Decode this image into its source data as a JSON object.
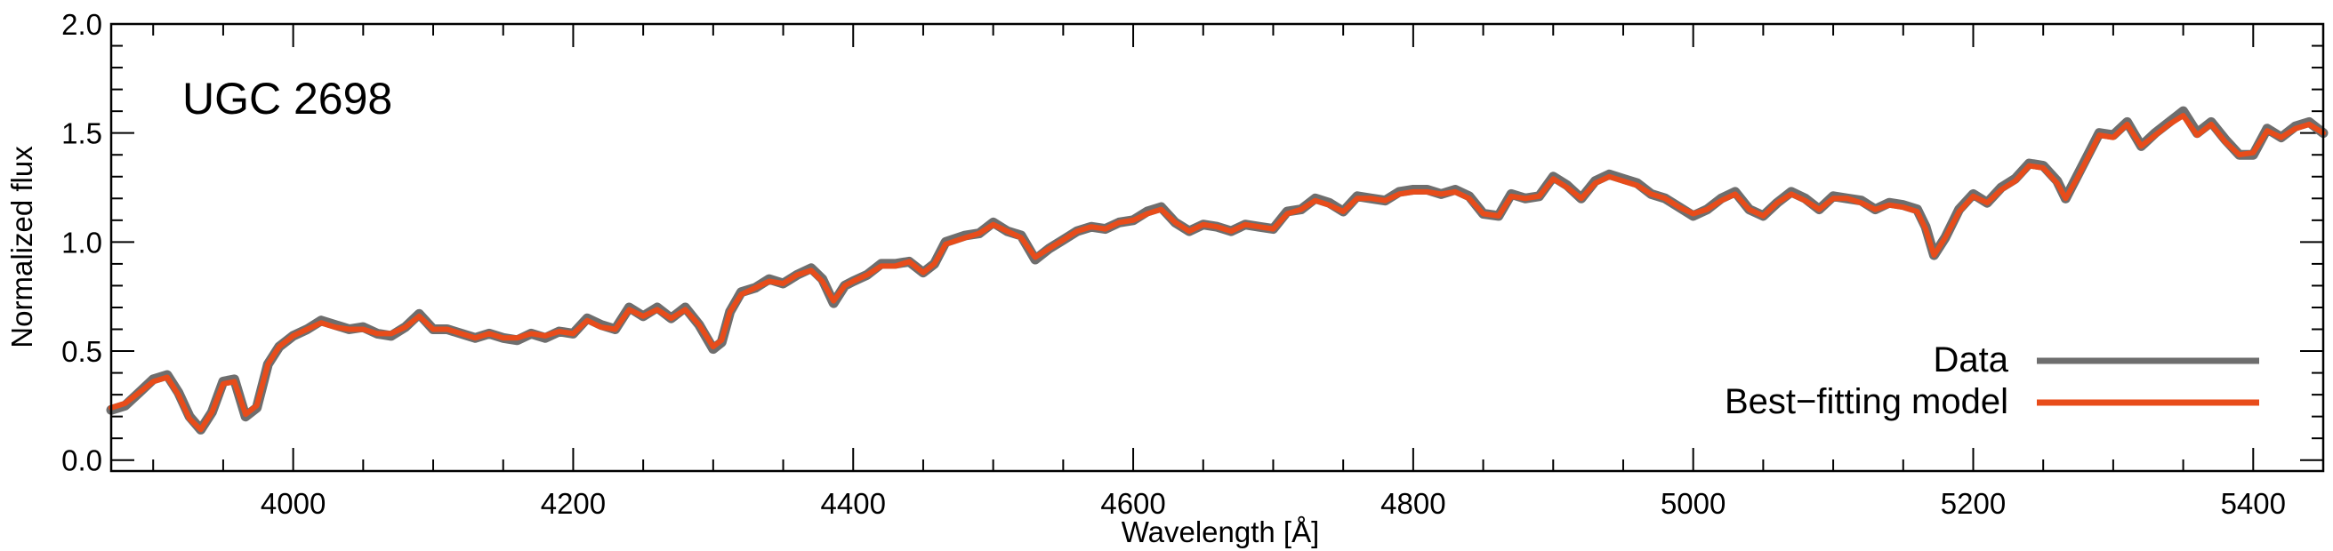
{
  "chart_data": {
    "type": "line",
    "title": "",
    "annotation": "UGC 2698",
    "xlabel": "Wavelength [Å]",
    "ylabel": "Normalized flux",
    "xlim": [
      3870,
      5450
    ],
    "ylim": [
      -0.05,
      2.0
    ],
    "xticks": [
      4000,
      4200,
      4400,
      4600,
      4800,
      5000,
      5200,
      5400
    ],
    "xtick_labels": [
      "4000",
      "4200",
      "4400",
      "4600",
      "4800",
      "5000",
      "5200",
      "5400"
    ],
    "yticks": [
      0.0,
      0.5,
      1.0,
      1.5,
      2.0
    ],
    "ytick_labels": [
      "0.0",
      "0.5",
      "1.0",
      "1.5",
      "2.0"
    ],
    "grid": false,
    "legend_position": "bottom-right",
    "series": [
      {
        "name": "Data",
        "color": "#6e6e6e",
        "x": [
          3870,
          3880,
          3890,
          3900,
          3910,
          3918,
          3926,
          3934,
          3942,
          3950,
          3958,
          3966,
          3974,
          3982,
          3990,
          4000,
          4010,
          4020,
          4030,
          4040,
          4050,
          4060,
          4070,
          4080,
          4090,
          4100,
          4110,
          4120,
          4130,
          4140,
          4150,
          4160,
          4170,
          4180,
          4190,
          4200,
          4210,
          4220,
          4230,
          4240,
          4250,
          4260,
          4270,
          4280,
          4290,
          4300,
          4306,
          4312,
          4320,
          4330,
          4340,
          4350,
          4360,
          4370,
          4378,
          4386,
          4394,
          4400,
          4410,
          4420,
          4430,
          4440,
          4450,
          4458,
          4466,
          4480,
          4490,
          4500,
          4510,
          4520,
          4530,
          4540,
          4550,
          4560,
          4570,
          4580,
          4590,
          4600,
          4610,
          4620,
          4630,
          4640,
          4650,
          4660,
          4670,
          4680,
          4690,
          4700,
          4710,
          4720,
          4730,
          4740,
          4750,
          4760,
          4770,
          4780,
          4790,
          4800,
          4810,
          4820,
          4830,
          4840,
          4850,
          4861,
          4870,
          4880,
          4890,
          4900,
          4910,
          4920,
          4930,
          4940,
          4950,
          4960,
          4970,
          4980,
          4990,
          5000,
          5010,
          5020,
          5030,
          5040,
          5050,
          5060,
          5070,
          5080,
          5090,
          5100,
          5110,
          5120,
          5130,
          5140,
          5150,
          5160,
          5166,
          5172,
          5180,
          5190,
          5200,
          5210,
          5220,
          5230,
          5240,
          5250,
          5260,
          5266,
          5274,
          5282,
          5290,
          5300,
          5310,
          5320,
          5330,
          5340,
          5350,
          5360,
          5370,
          5380,
          5390,
          5400,
          5410,
          5420,
          5430,
          5440,
          5450
        ],
        "y": [
          0.23,
          0.25,
          0.31,
          0.37,
          0.39,
          0.31,
          0.2,
          0.14,
          0.22,
          0.36,
          0.37,
          0.2,
          0.24,
          0.44,
          0.52,
          0.57,
          0.6,
          0.64,
          0.62,
          0.6,
          0.61,
          0.58,
          0.57,
          0.61,
          0.67,
          0.6,
          0.6,
          0.58,
          0.56,
          0.58,
          0.56,
          0.55,
          0.58,
          0.56,
          0.59,
          0.58,
          0.65,
          0.62,
          0.6,
          0.7,
          0.66,
          0.7,
          0.65,
          0.7,
          0.62,
          0.51,
          0.54,
          0.68,
          0.77,
          0.79,
          0.83,
          0.81,
          0.85,
          0.88,
          0.83,
          0.72,
          0.8,
          0.82,
          0.85,
          0.9,
          0.9,
          0.91,
          0.86,
          0.9,
          1.0,
          1.03,
          1.04,
          1.09,
          1.05,
          1.03,
          0.92,
          0.97,
          1.01,
          1.05,
          1.07,
          1.06,
          1.09,
          1.1,
          1.14,
          1.16,
          1.09,
          1.05,
          1.08,
          1.07,
          1.05,
          1.08,
          1.07,
          1.06,
          1.14,
          1.15,
          1.2,
          1.18,
          1.14,
          1.21,
          1.2,
          1.19,
          1.23,
          1.24,
          1.24,
          1.22,
          1.24,
          1.21,
          1.13,
          1.12,
          1.22,
          1.2,
          1.21,
          1.3,
          1.26,
          1.2,
          1.28,
          1.31,
          1.29,
          1.27,
          1.22,
          1.2,
          1.16,
          1.12,
          1.15,
          1.2,
          1.23,
          1.15,
          1.12,
          1.18,
          1.23,
          1.2,
          1.15,
          1.21,
          1.2,
          1.19,
          1.15,
          1.18,
          1.17,
          1.15,
          1.07,
          0.94,
          1.02,
          1.15,
          1.22,
          1.18,
          1.25,
          1.29,
          1.36,
          1.35,
          1.28,
          1.2,
          1.3,
          1.4,
          1.5,
          1.49,
          1.55,
          1.44,
          1.5,
          1.55,
          1.6,
          1.5,
          1.55,
          1.47,
          1.4,
          1.4,
          1.52,
          1.48,
          1.53,
          1.55,
          1.5
        ]
      },
      {
        "name": "Best−fitting model",
        "color": "#e84c1a",
        "x": [
          3870,
          3880,
          3890,
          3900,
          3910,
          3918,
          3926,
          3934,
          3942,
          3950,
          3958,
          3966,
          3974,
          3982,
          3990,
          4000,
          4010,
          4020,
          4030,
          4040,
          4050,
          4060,
          4070,
          4080,
          4090,
          4100,
          4110,
          4120,
          4130,
          4140,
          4150,
          4160,
          4170,
          4180,
          4190,
          4200,
          4210,
          4220,
          4230,
          4240,
          4250,
          4260,
          4270,
          4280,
          4290,
          4300,
          4306,
          4312,
          4320,
          4330,
          4340,
          4350,
          4360,
          4370,
          4378,
          4386,
          4394,
          4400,
          4410,
          4420,
          4430,
          4440,
          4450,
          4458,
          4466,
          4480,
          4490,
          4500,
          4510,
          4520,
          4530,
          4540,
          4550,
          4560,
          4570,
          4580,
          4590,
          4600,
          4610,
          4620,
          4630,
          4640,
          4650,
          4660,
          4670,
          4680,
          4690,
          4700,
          4710,
          4720,
          4730,
          4740,
          4750,
          4760,
          4770,
          4780,
          4790,
          4800,
          4810,
          4820,
          4830,
          4840,
          4850,
          4861,
          4870,
          4880,
          4890,
          4900,
          4910,
          4920,
          4930,
          4940,
          4950,
          4960,
          4970,
          4980,
          4990,
          5000,
          5010,
          5020,
          5030,
          5040,
          5050,
          5060,
          5070,
          5080,
          5090,
          5100,
          5110,
          5120,
          5130,
          5140,
          5150,
          5160,
          5166,
          5172,
          5180,
          5190,
          5200,
          5210,
          5220,
          5230,
          5240,
          5250,
          5260,
          5266,
          5274,
          5282,
          5290,
          5300,
          5310,
          5320,
          5330,
          5340,
          5350,
          5360,
          5370,
          5380,
          5390,
          5400,
          5410,
          5420,
          5430,
          5440,
          5450
        ],
        "y": [
          0.24,
          0.26,
          0.31,
          0.36,
          0.38,
          0.3,
          0.19,
          0.14,
          0.22,
          0.35,
          0.36,
          0.21,
          0.25,
          0.44,
          0.52,
          0.57,
          0.6,
          0.63,
          0.61,
          0.6,
          0.6,
          0.58,
          0.58,
          0.61,
          0.66,
          0.6,
          0.6,
          0.58,
          0.56,
          0.58,
          0.56,
          0.56,
          0.58,
          0.57,
          0.59,
          0.58,
          0.64,
          0.61,
          0.6,
          0.69,
          0.66,
          0.69,
          0.65,
          0.69,
          0.62,
          0.52,
          0.55,
          0.68,
          0.76,
          0.79,
          0.82,
          0.81,
          0.85,
          0.87,
          0.82,
          0.73,
          0.8,
          0.82,
          0.85,
          0.89,
          0.89,
          0.91,
          0.86,
          0.9,
          0.99,
          1.02,
          1.04,
          1.08,
          1.05,
          1.02,
          0.93,
          0.97,
          1.01,
          1.05,
          1.07,
          1.06,
          1.09,
          1.1,
          1.13,
          1.15,
          1.09,
          1.05,
          1.08,
          1.07,
          1.05,
          1.08,
          1.07,
          1.06,
          1.13,
          1.15,
          1.19,
          1.17,
          1.14,
          1.2,
          1.2,
          1.19,
          1.22,
          1.23,
          1.23,
          1.22,
          1.23,
          1.2,
          1.13,
          1.12,
          1.21,
          1.2,
          1.21,
          1.29,
          1.25,
          1.2,
          1.27,
          1.3,
          1.28,
          1.26,
          1.22,
          1.2,
          1.16,
          1.13,
          1.15,
          1.19,
          1.22,
          1.15,
          1.12,
          1.18,
          1.22,
          1.19,
          1.15,
          1.2,
          1.2,
          1.18,
          1.15,
          1.17,
          1.16,
          1.14,
          1.06,
          0.94,
          1.02,
          1.14,
          1.21,
          1.18,
          1.24,
          1.28,
          1.35,
          1.34,
          1.27,
          1.2,
          1.29,
          1.39,
          1.49,
          1.48,
          1.54,
          1.44,
          1.49,
          1.54,
          1.58,
          1.49,
          1.54,
          1.46,
          1.4,
          1.41,
          1.51,
          1.48,
          1.52,
          1.54,
          1.5
        ]
      }
    ]
  }
}
